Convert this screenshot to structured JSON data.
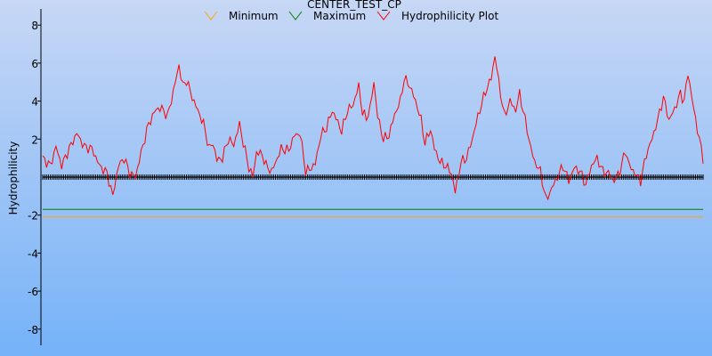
{
  "chart_data": {
    "type": "line",
    "title": "CENTER_TEST_CP",
    "xlabel": "",
    "ylabel": "Hydrophilicity",
    "ylim": [
      -9,
      9
    ],
    "yticks": [
      8,
      6,
      4,
      2,
      -2,
      -4,
      -6,
      -8
    ],
    "grid": false,
    "legend_position": "top-center",
    "legend": [
      "Minimum",
      "Maximum",
      "Hydrophilicity Plot"
    ],
    "n_points": 350,
    "series": [
      {
        "name": "Hydrophilicity Plot",
        "color": "#ff0000",
        "anchors": [
          [
            0,
            1.0
          ],
          [
            4,
            0.6
          ],
          [
            7,
            1.6
          ],
          [
            10,
            0.6
          ],
          [
            14,
            1.5
          ],
          [
            18,
            2.3
          ],
          [
            22,
            1.6
          ],
          [
            26,
            1.5
          ],
          [
            30,
            0.6
          ],
          [
            34,
            0.2
          ],
          [
            37,
            -1.0
          ],
          [
            40,
            0.6
          ],
          [
            43,
            1.0
          ],
          [
            46,
            0.2
          ],
          [
            49,
            0.0
          ],
          [
            52,
            1.3
          ],
          [
            56,
            2.8
          ],
          [
            60,
            3.6
          ],
          [
            63,
            3.6
          ],
          [
            66,
            3.2
          ],
          [
            69,
            4.5
          ],
          [
            72,
            5.9
          ],
          [
            74,
            4.8
          ],
          [
            76,
            5.1
          ],
          [
            79,
            4.2
          ],
          [
            82,
            3.5
          ],
          [
            85,
            2.8
          ],
          [
            88,
            1.5
          ],
          [
            90,
            1.8
          ],
          [
            92,
            0.9
          ],
          [
            95,
            1.0
          ],
          [
            98,
            2.0
          ],
          [
            101,
            1.7
          ],
          [
            104,
            2.8
          ],
          [
            106,
            1.8
          ],
          [
            109,
            0.5
          ],
          [
            111,
            0.0
          ],
          [
            113,
            1.3
          ],
          [
            116,
            1.2
          ],
          [
            118,
            0.6
          ],
          [
            121,
            0.3
          ],
          [
            124,
            1.0
          ],
          [
            126,
            1.5
          ],
          [
            130,
            1.4
          ],
          [
            133,
            2.2
          ],
          [
            136,
            2.3
          ],
          [
            139,
            0.3
          ],
          [
            141,
            0.4
          ],
          [
            144,
            0.7
          ],
          [
            147,
            2.2
          ],
          [
            150,
            2.6
          ],
          [
            153,
            3.5
          ],
          [
            155,
            3.1
          ],
          [
            158,
            2.4
          ],
          [
            161,
            3.5
          ],
          [
            164,
            3.8
          ],
          [
            167,
            4.8
          ],
          [
            169,
            3.4
          ],
          [
            171,
            3.1
          ],
          [
            173,
            3.6
          ],
          [
            175,
            5.0
          ],
          [
            177,
            3.2
          ],
          [
            180,
            2.0
          ],
          [
            183,
            2.2
          ],
          [
            186,
            3.3
          ],
          [
            189,
            4.0
          ],
          [
            191,
            5.2
          ],
          [
            194,
            4.8
          ],
          [
            197,
            4.0
          ],
          [
            200,
            3.0
          ],
          [
            202,
            1.8
          ],
          [
            205,
            2.5
          ],
          [
            207,
            1.5
          ],
          [
            210,
            0.8
          ],
          [
            213,
            0.6
          ],
          [
            216,
            0.2
          ],
          [
            218,
            -0.8
          ],
          [
            221,
            0.8
          ],
          [
            224,
            1.0
          ],
          [
            227,
            2.0
          ],
          [
            230,
            3.2
          ],
          [
            234,
            4.5
          ],
          [
            237,
            5.2
          ],
          [
            239,
            6.4
          ],
          [
            241,
            5.0
          ],
          [
            244,
            3.2
          ],
          [
            247,
            4.0
          ],
          [
            250,
            3.5
          ],
          [
            252,
            4.4
          ],
          [
            255,
            3.0
          ],
          [
            258,
            1.5
          ],
          [
            260,
            0.8
          ],
          [
            263,
            0.3
          ],
          [
            266,
            -1.2
          ],
          [
            269,
            -0.6
          ],
          [
            272,
            0.0
          ],
          [
            275,
            0.6
          ],
          [
            278,
            -0.2
          ],
          [
            281,
            0.5
          ],
          [
            284,
            0.3
          ],
          [
            287,
            -0.4
          ],
          [
            290,
            0.6
          ],
          [
            293,
            1.0
          ],
          [
            296,
            0.3
          ],
          [
            299,
            0.2
          ],
          [
            302,
            -0.2
          ],
          [
            305,
            0.3
          ],
          [
            308,
            1.4
          ],
          [
            310,
            0.6
          ],
          [
            313,
            0.2
          ],
          [
            316,
            -0.2
          ],
          [
            319,
            1.2
          ],
          [
            322,
            2.0
          ],
          [
            325,
            3.0
          ],
          [
            328,
            4.2
          ],
          [
            331,
            3.0
          ],
          [
            334,
            3.6
          ],
          [
            337,
            4.4
          ],
          [
            339,
            4.0
          ],
          [
            341,
            5.5
          ],
          [
            344,
            3.6
          ],
          [
            347,
            2.0
          ],
          [
            349,
            1.0
          ]
        ]
      },
      {
        "name": "Minimum",
        "color": "#ffa500",
        "value": -2.1
      },
      {
        "name": "Maximum",
        "color": "#008000",
        "value": -1.7
      }
    ],
    "baseline": {
      "value": 0,
      "color": "#000000",
      "marker": "cross"
    },
    "colors": {
      "background_top": "#c7d7f5",
      "background_bottom": "#75b2f8",
      "axis": "#000000"
    }
  }
}
